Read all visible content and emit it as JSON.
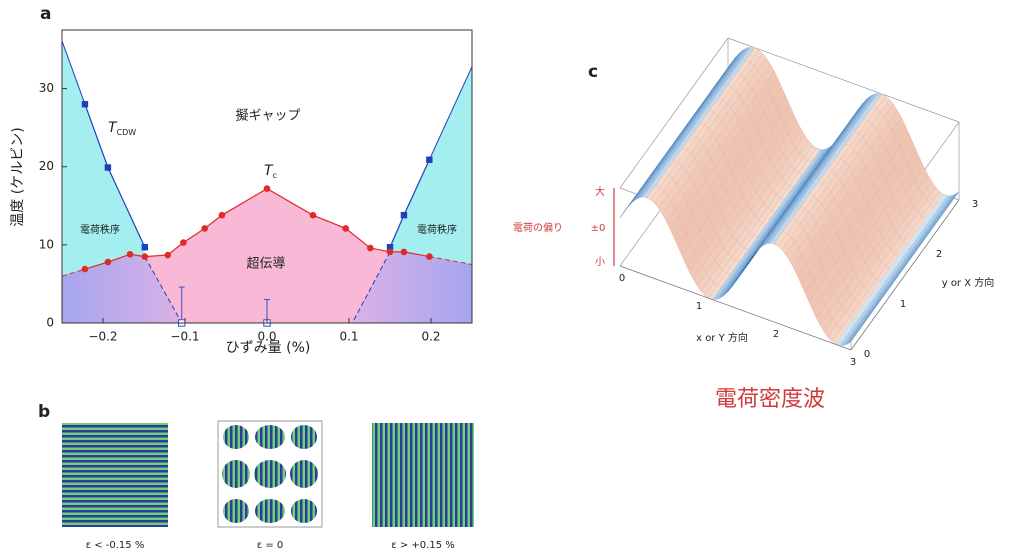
{
  "chart_data": {
    "type": "line",
    "panel_label": "a",
    "xlabel": "ひずみ量 (%)",
    "ylabel": "温度 (ケルビン)",
    "xlim": [
      -0.25,
      0.25
    ],
    "ylim": [
      0,
      37.5
    ],
    "xticks": [
      {
        "value": -0.2,
        "label": "−0.2"
      },
      {
        "value": -0.1,
        "label": "−0.1"
      },
      {
        "value": 0,
        "label": "0.0"
      },
      0.1,
      0.2
    ],
    "yticks": [
      0,
      10,
      20,
      30
    ],
    "series": [
      {
        "color": "#1f3fbf",
        "marker": "square",
        "x": [
          -0.222,
          -0.194,
          -0.149
        ],
        "values": [
          28,
          19.9,
          9.7
        ]
      },
      {
        "color": "#1f3fbf",
        "marker": "square",
        "x": [
          0.15,
          0.167,
          0.198
        ],
        "values": [
          9.7,
          13.8,
          20.9
        ]
      },
      {
        "color": "#e02a2a",
        "marker": "circle",
        "x": [
          -0.222,
          -0.194,
          -0.167,
          -0.149,
          -0.121,
          -0.102,
          -0.076,
          -0.055,
          0,
          0.056,
          0.096,
          0.126,
          0.15,
          0.167,
          0.198
        ],
        "values": [
          6.9,
          7.8,
          8.8,
          8.5,
          8.7,
          10.3,
          12.1,
          13.8,
          17.2,
          13.8,
          12.1,
          9.6,
          9.1,
          9.1,
          8.5
        ]
      },
      {
        "color": "#3a4fd0",
        "marker": "open-square",
        "x": [
          -0.104,
          0
        ],
        "values": [
          0,
          0
        ],
        "errors": [
          4.6,
          3.0
        ]
      }
    ],
    "labels": {
      "pseudogap": "擬ギャップ",
      "cdw_left": "電荷秩序",
      "cdw_right": "電荷秩序",
      "superconductivity": "超伝導",
      "tcdw": {
        "main": "T",
        "sub": "CDW"
      },
      "tc": {
        "main": "T",
        "sub": "c"
      }
    }
  },
  "panel_b": {
    "label": "b",
    "captions": [
      "ε < -0.15 %",
      "ε = 0",
      "ε > +0.15 %"
    ]
  },
  "panel_c": {
    "label": "c",
    "z_title": "電荷の偏り",
    "z_labels": [
      "大",
      "±0",
      "小"
    ],
    "x_ticks": [
      0,
      1,
      2,
      3
    ],
    "y_ticks": [
      0,
      1,
      2,
      3
    ],
    "x_title": "x or Y 方向",
    "y_title": "y or X 方向",
    "caption": "電荷密度波"
  }
}
